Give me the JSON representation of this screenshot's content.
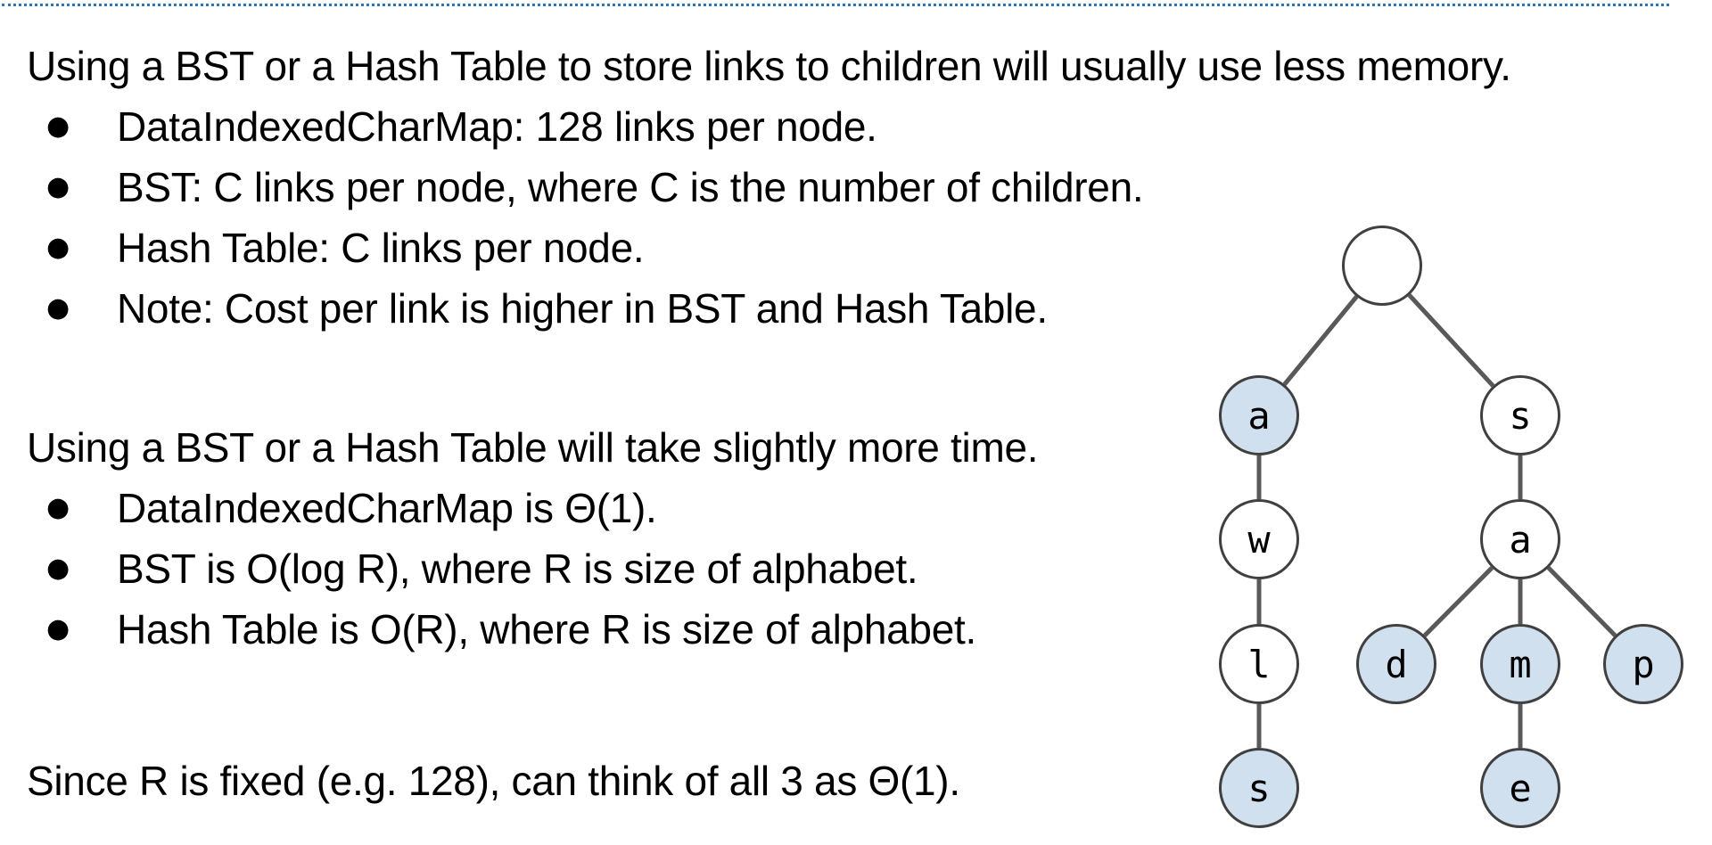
{
  "slide": {
    "intro_memory": "Using a BST or a Hash Table to store links to children will usually use less memory.",
    "memory_points": [
      "DataIndexedCharMap: 128 links per node.",
      "BST: C links per node, where C is the number of children.",
      "Hash Table: C links per node.",
      "Note: Cost per link is higher in BST and Hash Table."
    ],
    "intro_time": "Using a BST or a Hash Table will take slightly more time.",
    "time_points": [
      "DataIndexedCharMap is Θ(1).",
      "BST is O(log R), where R is size of alphabet.",
      "Hash Table is O(R), where R is size of alphabet."
    ],
    "conclusion": "Since R is fixed (e.g. 128), can think of all 3 as Θ(1)."
  },
  "trie": {
    "colors": {
      "key_end_fill": "#d0e0ef",
      "node_fill": "#ffffff",
      "node_stroke": "#404040",
      "edge_stroke": "#595959"
    },
    "nodes": {
      "root": {
        "label": "",
        "is_key_end": false
      },
      "a": {
        "label": "a",
        "is_key_end": true
      },
      "a_w": {
        "label": "w",
        "is_key_end": false
      },
      "a_w_l": {
        "label": "l",
        "is_key_end": false
      },
      "a_w_l_s": {
        "label": "s",
        "is_key_end": true
      },
      "s": {
        "label": "s",
        "is_key_end": false
      },
      "s_a": {
        "label": "a",
        "is_key_end": false
      },
      "s_a_d": {
        "label": "d",
        "is_key_end": true
      },
      "s_a_m": {
        "label": "m",
        "is_key_end": true
      },
      "s_a_m_e": {
        "label": "e",
        "is_key_end": true
      },
      "s_a_p": {
        "label": "p",
        "is_key_end": true
      }
    },
    "edges": [
      [
        "root",
        "a"
      ],
      [
        "root",
        "s"
      ],
      [
        "a",
        "a_w"
      ],
      [
        "a_w",
        "a_w_l"
      ],
      [
        "a_w_l",
        "a_w_l_s"
      ],
      [
        "s",
        "s_a"
      ],
      [
        "s_a",
        "s_a_d"
      ],
      [
        "s_a",
        "s_a_m"
      ],
      [
        "s_a",
        "s_a_p"
      ],
      [
        "s_a_m",
        "s_a_m_e"
      ]
    ]
  }
}
